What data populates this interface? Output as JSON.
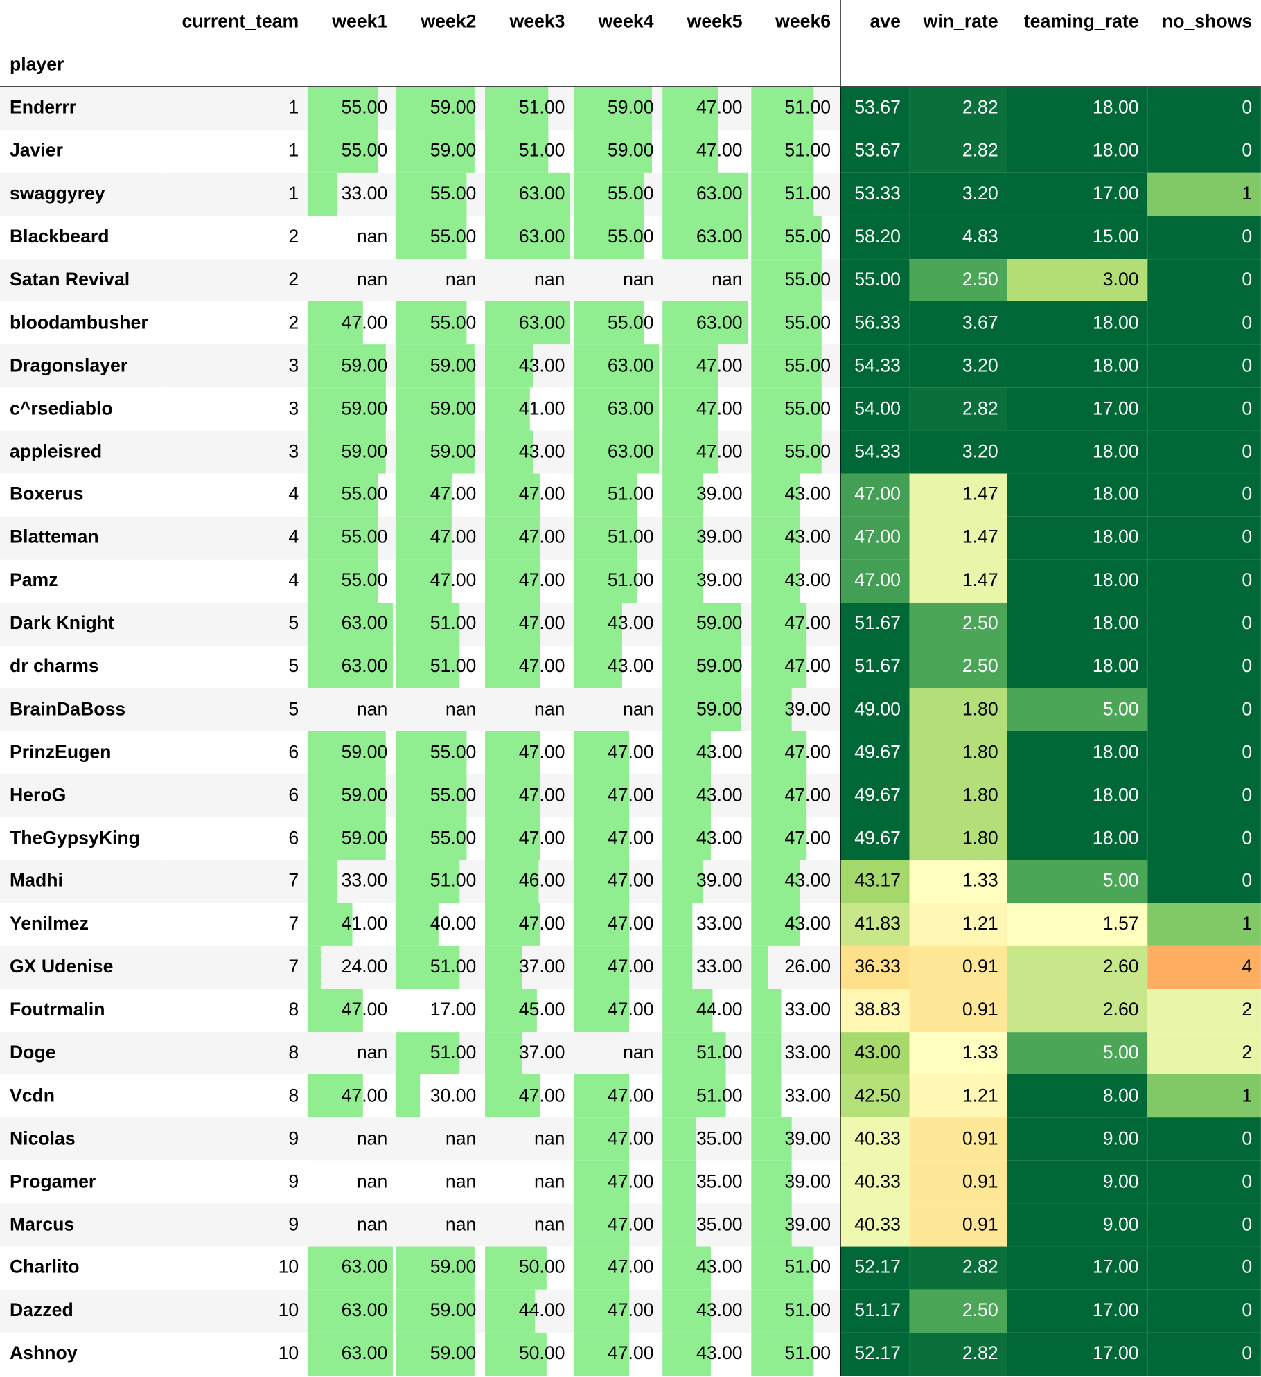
{
  "columns": {
    "current_team": "current_team",
    "week1": "week1",
    "week2": "week2",
    "week3": "week3",
    "week4": "week4",
    "week5": "week5",
    "week6": "week6",
    "ave": "ave",
    "win_rate": "win_rate",
    "teaming_rate": "teaming_rate",
    "no_shows": "no_shows"
  },
  "index_name": "player",
  "rows": [
    {
      "player": "Enderrr",
      "team": "1",
      "w": [
        "55.00",
        "59.00",
        "51.00",
        "59.00",
        "47.00",
        "51.00"
      ],
      "ave": "53.67",
      "win": "2.82",
      "teaming": "18.00",
      "ns": "0"
    },
    {
      "player": "Javier",
      "team": "1",
      "w": [
        "55.00",
        "59.00",
        "51.00",
        "59.00",
        "47.00",
        "51.00"
      ],
      "ave": "53.67",
      "win": "2.82",
      "teaming": "18.00",
      "ns": "0"
    },
    {
      "player": "swaggyrey",
      "team": "1",
      "w": [
        "33.00",
        "55.00",
        "63.00",
        "55.00",
        "63.00",
        "51.00"
      ],
      "ave": "53.33",
      "win": "3.20",
      "teaming": "17.00",
      "ns": "1"
    },
    {
      "player": "Blackbeard",
      "team": "2",
      "w": [
        "nan",
        "55.00",
        "63.00",
        "55.00",
        "63.00",
        "55.00"
      ],
      "ave": "58.20",
      "win": "4.83",
      "teaming": "15.00",
      "ns": "0"
    },
    {
      "player": "Satan Revival",
      "team": "2",
      "w": [
        "nan",
        "nan",
        "nan",
        "nan",
        "nan",
        "55.00"
      ],
      "ave": "55.00",
      "win": "2.50",
      "teaming": "3.00",
      "ns": "0"
    },
    {
      "player": "bloodambusher",
      "team": "2",
      "w": [
        "47.00",
        "55.00",
        "63.00",
        "55.00",
        "63.00",
        "55.00"
      ],
      "ave": "56.33",
      "win": "3.67",
      "teaming": "18.00",
      "ns": "0"
    },
    {
      "player": "Dragonslayer",
      "team": "3",
      "w": [
        "59.00",
        "59.00",
        "43.00",
        "63.00",
        "47.00",
        "55.00"
      ],
      "ave": "54.33",
      "win": "3.20",
      "teaming": "18.00",
      "ns": "0"
    },
    {
      "player": "c^rsediablo",
      "team": "3",
      "w": [
        "59.00",
        "59.00",
        "41.00",
        "63.00",
        "47.00",
        "55.00"
      ],
      "ave": "54.00",
      "win": "2.82",
      "teaming": "17.00",
      "ns": "0"
    },
    {
      "player": "appleisred",
      "team": "3",
      "w": [
        "59.00",
        "59.00",
        "43.00",
        "63.00",
        "47.00",
        "55.00"
      ],
      "ave": "54.33",
      "win": "3.20",
      "teaming": "18.00",
      "ns": "0"
    },
    {
      "player": "Boxerus",
      "team": "4",
      "w": [
        "55.00",
        "47.00",
        "47.00",
        "51.00",
        "39.00",
        "43.00"
      ],
      "ave": "47.00",
      "win": "1.47",
      "teaming": "18.00",
      "ns": "0"
    },
    {
      "player": "Blatteman",
      "team": "4",
      "w": [
        "55.00",
        "47.00",
        "47.00",
        "51.00",
        "39.00",
        "43.00"
      ],
      "ave": "47.00",
      "win": "1.47",
      "teaming": "18.00",
      "ns": "0"
    },
    {
      "player": "Pamz",
      "team": "4",
      "w": [
        "55.00",
        "47.00",
        "47.00",
        "51.00",
        "39.00",
        "43.00"
      ],
      "ave": "47.00",
      "win": "1.47",
      "teaming": "18.00",
      "ns": "0"
    },
    {
      "player": "Dark Knight",
      "team": "5",
      "w": [
        "63.00",
        "51.00",
        "47.00",
        "43.00",
        "59.00",
        "47.00"
      ],
      "ave": "51.67",
      "win": "2.50",
      "teaming": "18.00",
      "ns": "0"
    },
    {
      "player": "dr charms",
      "team": "5",
      "w": [
        "63.00",
        "51.00",
        "47.00",
        "43.00",
        "59.00",
        "47.00"
      ],
      "ave": "51.67",
      "win": "2.50",
      "teaming": "18.00",
      "ns": "0"
    },
    {
      "player": "BrainDaBoss",
      "team": "5",
      "w": [
        "nan",
        "nan",
        "nan",
        "nan",
        "59.00",
        "39.00"
      ],
      "ave": "49.00",
      "win": "1.80",
      "teaming": "5.00",
      "ns": "0"
    },
    {
      "player": "PrinzEugen",
      "team": "6",
      "w": [
        "59.00",
        "55.00",
        "47.00",
        "47.00",
        "43.00",
        "47.00"
      ],
      "ave": "49.67",
      "win": "1.80",
      "teaming": "18.00",
      "ns": "0"
    },
    {
      "player": "HeroG",
      "team": "6",
      "w": [
        "59.00",
        "55.00",
        "47.00",
        "47.00",
        "43.00",
        "47.00"
      ],
      "ave": "49.67",
      "win": "1.80",
      "teaming": "18.00",
      "ns": "0"
    },
    {
      "player": "TheGypsyKing",
      "team": "6",
      "w": [
        "59.00",
        "55.00",
        "47.00",
        "47.00",
        "43.00",
        "47.00"
      ],
      "ave": "49.67",
      "win": "1.80",
      "teaming": "18.00",
      "ns": "0"
    },
    {
      "player": "Madhi",
      "team": "7",
      "w": [
        "33.00",
        "51.00",
        "46.00",
        "47.00",
        "39.00",
        "43.00"
      ],
      "ave": "43.17",
      "win": "1.33",
      "teaming": "5.00",
      "ns": "0"
    },
    {
      "player": "Yenilmez",
      "team": "7",
      "w": [
        "41.00",
        "40.00",
        "47.00",
        "47.00",
        "33.00",
        "43.00"
      ],
      "ave": "41.83",
      "win": "1.21",
      "teaming": "1.57",
      "ns": "1"
    },
    {
      "player": "GX Udenise",
      "team": "7",
      "w": [
        "24.00",
        "51.00",
        "37.00",
        "47.00",
        "33.00",
        "26.00"
      ],
      "ave": "36.33",
      "win": "0.91",
      "teaming": "2.60",
      "ns": "4"
    },
    {
      "player": "Foutrmalin",
      "team": "8",
      "w": [
        "47.00",
        "17.00",
        "45.00",
        "47.00",
        "44.00",
        "33.00"
      ],
      "ave": "38.83",
      "win": "0.91",
      "teaming": "2.60",
      "ns": "2"
    },
    {
      "player": "Doge",
      "team": "8",
      "w": [
        "nan",
        "51.00",
        "37.00",
        "nan",
        "51.00",
        "33.00"
      ],
      "ave": "43.00",
      "win": "1.33",
      "teaming": "5.00",
      "ns": "2"
    },
    {
      "player": "Vcdn",
      "team": "8",
      "w": [
        "47.00",
        "30.00",
        "47.00",
        "47.00",
        "51.00",
        "33.00"
      ],
      "ave": "42.50",
      "win": "1.21",
      "teaming": "8.00",
      "ns": "1"
    },
    {
      "player": "Nicolas",
      "team": "9",
      "w": [
        "nan",
        "nan",
        "nan",
        "47.00",
        "35.00",
        "39.00"
      ],
      "ave": "40.33",
      "win": "0.91",
      "teaming": "9.00",
      "ns": "0"
    },
    {
      "player": "Progamer",
      "team": "9",
      "w": [
        "nan",
        "nan",
        "nan",
        "47.00",
        "35.00",
        "39.00"
      ],
      "ave": "40.33",
      "win": "0.91",
      "teaming": "9.00",
      "ns": "0"
    },
    {
      "player": "Marcus",
      "team": "9",
      "w": [
        "nan",
        "nan",
        "nan",
        "47.00",
        "35.00",
        "39.00"
      ],
      "ave": "40.33",
      "win": "0.91",
      "teaming": "9.00",
      "ns": "0"
    },
    {
      "player": "Charlito",
      "team": "10",
      "w": [
        "63.00",
        "59.00",
        "50.00",
        "47.00",
        "43.00",
        "51.00"
      ],
      "ave": "52.17",
      "win": "2.82",
      "teaming": "17.00",
      "ns": "0"
    },
    {
      "player": "Dazzed",
      "team": "10",
      "w": [
        "63.00",
        "59.00",
        "44.00",
        "47.00",
        "43.00",
        "51.00"
      ],
      "ave": "51.17",
      "win": "2.50",
      "teaming": "17.00",
      "ns": "0"
    },
    {
      "player": "Ashnoy",
      "team": "10",
      "w": [
        "63.00",
        "59.00",
        "50.00",
        "47.00",
        "43.00",
        "51.00"
      ],
      "ave": "52.17",
      "win": "2.82",
      "teaming": "17.00",
      "ns": "0"
    }
  ],
  "colors": {
    "bar": "#90ee90",
    "dark_green": "#006837",
    "yellow": "#ffffbf",
    "orange": "#fdae61"
  }
}
